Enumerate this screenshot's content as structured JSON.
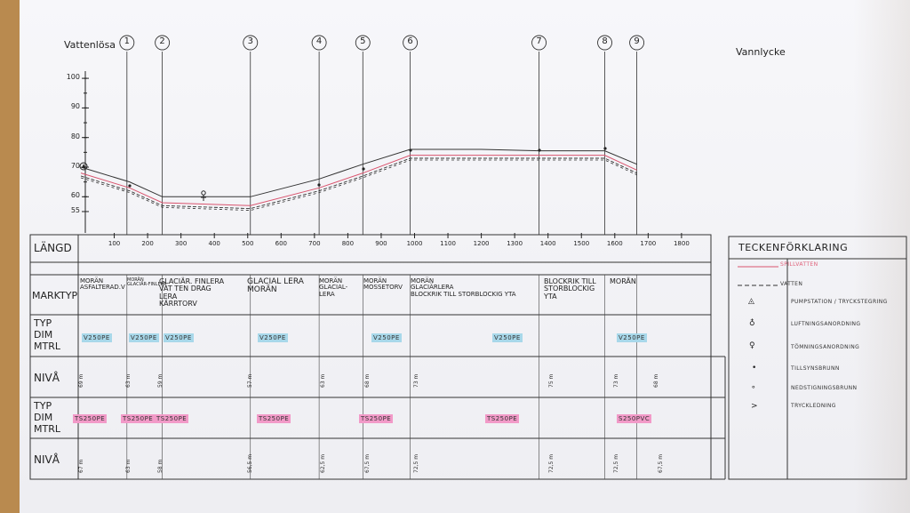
{
  "header": {
    "left_place": "Vattenlösa",
    "right_place": "Vannlycke"
  },
  "markers": [
    "1",
    "2",
    "3",
    "4",
    "5",
    "6",
    "7",
    "8",
    "9"
  ],
  "y_ticks": [
    "100",
    "90",
    "80",
    "70",
    "60",
    "55"
  ],
  "x_ticks": [
    "100",
    "200",
    "300",
    "400",
    "500",
    "600",
    "700",
    "800",
    "900",
    "1000",
    "1100",
    "1200",
    "1300",
    "1400",
    "1500",
    "1600",
    "1700",
    "1800"
  ],
  "rows": {
    "length": "LÄNGD",
    "ground": "MARKTYP",
    "type1_a": "TYP",
    "type1_b": "DIM",
    "type1_c": "MTRL",
    "level1": "NIVÅ",
    "type2_a": "TYP",
    "type2_b": "DIM",
    "type2_c": "MTRL",
    "level2": "NIVÅ"
  },
  "ground_cells": [
    {
      "l1": "MORÄN",
      "l2": "ASFALTERAD.V"
    },
    {
      "l1": "MORÄN",
      "l2": "GLACIÄR-FINLERA"
    },
    {
      "l1": "GLACIÄR. FINLERA",
      "l2": "VAT TEN DRAG",
      "l3": "LERA",
      "l4": "KÄRRTORV"
    },
    {
      "l1": "GLACIAL LERA",
      "l2": "MORÄN"
    },
    {
      "l1": "MORÄN",
      "l2": "GLACIAL-",
      "l3": "LERA"
    },
    {
      "l1": "MORÄN",
      "l2": "MOSSETORV"
    },
    {
      "l1": "MORÄN",
      "l2": "GLACIÄRLERA",
      "l3": "BLOCKRIK TILL STORBLOCKIG YTA"
    },
    {
      "l1": "BLOCKRIK TILL",
      "l2": "STORBLOCKIG",
      "l3": "YTA"
    },
    {
      "l1": "MORÄN"
    }
  ],
  "pipe1_labels": [
    "V250PE",
    "V250PE",
    "V250PE",
    "V250PE",
    "V250PE",
    "V250PE",
    "V250PE"
  ],
  "pipe2_labels": [
    "TS250PE",
    "TS250PE",
    "TS250PE",
    "TS250PE",
    "TS250PE",
    "TS250PE",
    "S250PVC"
  ],
  "level1_values": [
    "69 m",
    "63 m",
    "59 m",
    "57 m",
    "63 m",
    "68 m",
    "73 m",
    "75 m",
    "73 m",
    "68 m"
  ],
  "level2_values": [
    "67 m",
    "63 m",
    "58 m",
    "56,5 m",
    "62,5 m",
    "67,5 m",
    "72,5 m",
    "72,5 m",
    "72,5 m",
    "67,5 m"
  ],
  "legend": {
    "title": "TECKENFÖRKLARING",
    "items": [
      {
        "text": "SPILLVATTEN",
        "color": "#e0607a"
      },
      {
        "text": "VATTEN",
        "color": "#333333"
      },
      {
        "text": "PUMPSTATION / TRYCKSTEGRING",
        "color": "#333333"
      },
      {
        "text": "LUFTNINGSANORDNING",
        "color": "#333333"
      },
      {
        "text": "TÖMNINGSANORDNING",
        "color": "#333333"
      },
      {
        "text": "TILLSYNSBRUNN",
        "color": "#333333"
      },
      {
        "text": "NEDSTIGNINGSBRUNN",
        "color": "#333333"
      },
      {
        "text": "TRYCKLEDNING",
        "color": "#333333"
      }
    ]
  },
  "colors": {
    "sewer": "#d9546e",
    "water": "#333333",
    "ink": "#222222",
    "blue_highlight": "#a8d8ea",
    "pink_highlight": "#f29ac8"
  }
}
